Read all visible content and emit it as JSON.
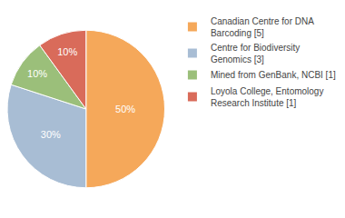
{
  "chart_data": {
    "type": "pie",
    "categories": [
      "Canadian Centre for DNA\nBarcoding [5]",
      "Centre for Biodiversity\nGenomics [3]",
      "Mined from GenBank, NCBI [1]",
      "Loyola College, Entomology\nResearch Institute [1]"
    ],
    "values": [
      50,
      30,
      10,
      10
    ],
    "value_labels": [
      "50%",
      "30%",
      "10%",
      "10%"
    ],
    "data_labels": true,
    "colors": [
      "#F5A85A",
      "#A8BDD4",
      "#9BBF7A",
      "#D96B5A"
    ],
    "legend": "upper right"
  }
}
